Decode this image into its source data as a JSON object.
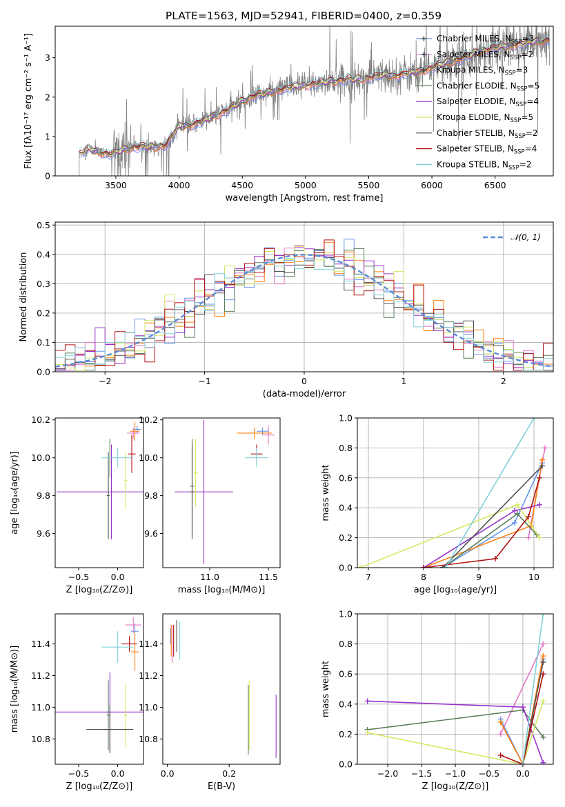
{
  "figure_title": "PLATE=1563, MJD=52941, FIBERID=0400, z=0.359",
  "colors": {
    "Chabrier MILES": "#6495ed",
    "Salpeter MILES": "#e377c2",
    "Kroupa MILES": "#ff7f0e",
    "Chabrier ELODIE": "#5a7d5a",
    "Salpeter ELODIE": "#9932cc",
    "Kroupa ELODIE": "#d4e860",
    "Chabrier STELIB": "#505050",
    "Salpeter STELIB": "#b01010",
    "Kroupa STELIB": "#80d0d8",
    "data": "#808080",
    "normal": "#5b8ad6"
  },
  "chart_data": [
    {
      "id": "spectrum",
      "type": "line",
      "xlabel": "wavelength [Angstrom, rest frame]",
      "ylabel": "Flux [fλ10⁻¹⁷ erg cm⁻² s⁻¹ A⁻¹]",
      "xlim": [
        3020,
        6960
      ],
      "ylim": [
        0,
        3.8
      ],
      "xticks": [
        3500,
        4000,
        4500,
        5000,
        5500,
        6000,
        6500
      ],
      "yticks": [
        0,
        1,
        2,
        3
      ],
      "data_range": [
        3210,
        6930
      ],
      "model_anchors": {
        "x": [
          3210,
          3280,
          3350,
          3450,
          3500,
          3600,
          3700,
          3800,
          3900,
          4000,
          4100,
          4200,
          4300,
          4400,
          4500,
          4600,
          4700,
          4800,
          4900,
          5000,
          5100,
          5200,
          5300,
          5400,
          5500,
          5600,
          5700,
          5800,
          5900,
          6000,
          6100,
          6200,
          6300,
          6400,
          6500,
          6600,
          6700,
          6800,
          6930
        ],
        "y": [
          0.55,
          0.68,
          0.62,
          0.55,
          0.6,
          0.7,
          0.75,
          0.72,
          0.8,
          1.25,
          1.3,
          1.4,
          1.55,
          1.7,
          1.9,
          2.05,
          2.1,
          2.2,
          2.25,
          2.3,
          2.35,
          2.4,
          2.45,
          2.45,
          2.5,
          2.55,
          2.55,
          2.6,
          2.65,
          2.75,
          2.85,
          2.95,
          3.05,
          3.2,
          3.25,
          3.3,
          3.35,
          3.4,
          3.45
        ]
      },
      "legend": [
        "Chabrier MILES, N_SSP=3",
        "Salpeter MILES, N_SSP=2",
        "Kroupa MILES, N_SSP=3",
        "Chabrier ELODIE, N_SSP=5",
        "Salpeter ELODIE, N_SSP=4",
        "Kroupa ELODIE, N_SSP=5",
        "Chabrier STELIB, N_SSP=2",
        "Salpeter STELIB, N_SSP=4",
        "Kroupa STELIB, N_SSP=2"
      ],
      "legend_position": "top-right"
    },
    {
      "id": "residuals",
      "type": "line",
      "xlabel": "(data-model)/error",
      "ylabel": "Normed distribution",
      "xlim": [
        -2.5,
        2.5
      ],
      "ylim": [
        0,
        0.51
      ],
      "xticks": [
        -2,
        -1,
        0,
        1,
        2
      ],
      "yticks": [
        0.0,
        0.1,
        0.2,
        0.3,
        0.4,
        0.5
      ],
      "bin_width": 0.1,
      "legend": [
        "𝒩(0, 1)"
      ],
      "legend_position": "top-right",
      "grid": true
    },
    {
      "id": "age_vs_Z",
      "type": "scatter",
      "xlabel": "Z [log₁₀(Z/Z⊙)]",
      "ylabel": "age  [log₁₀(age/yr)]",
      "xlim": [
        -0.8,
        0.33
      ],
      "ylim": [
        9.42,
        10.21
      ],
      "xticks": [
        -0.5,
        0.0
      ],
      "yticks": [
        9.6,
        9.8,
        10.0,
        10.2
      ],
      "points": [
        {
          "model": "Chabrier MILES",
          "x": 0.25,
          "xerr": 0.05,
          "y": 10.15,
          "yerr": 0.02
        },
        {
          "model": "Salpeter MILES",
          "x": 0.2,
          "xerr": 0.08,
          "y": 10.13,
          "yerr": 0.03
        },
        {
          "model": "Kroupa MILES",
          "x": 0.22,
          "xerr": 0.06,
          "y": 10.14,
          "yerr": 0.05
        },
        {
          "model": "Chabrier ELODIE",
          "x": -0.1,
          "xerr": 0.02,
          "y": 10.0,
          "yerr": 0.1
        },
        {
          "model": "Salpeter ELODIE",
          "x": -0.08,
          "xerr": 0.7,
          "y": 9.82,
          "yerr": 0.25
        },
        {
          "model": "Kroupa ELODIE",
          "x": 0.1,
          "xerr": 0.02,
          "y": 9.88,
          "yerr": 0.15
        },
        {
          "model": "Chabrier STELIB",
          "x": -0.12,
          "xerr": 0.02,
          "y": 9.8,
          "yerr": 0.23
        },
        {
          "model": "Salpeter STELIB",
          "x": 0.18,
          "xerr": 0.05,
          "y": 10.02,
          "yerr": 0.1
        },
        {
          "model": "Kroupa STELIB",
          "x": 0.0,
          "xerr": 0.2,
          "y": 10.0,
          "yerr": 0.05
        }
      ]
    },
    {
      "id": "age_vs_mass",
      "type": "scatter",
      "xlabel": "mass [log₁₀(M/M⊙)]",
      "ylabel": "",
      "xlim": [
        10.6,
        11.6
      ],
      "ylim": [
        9.42,
        10.21
      ],
      "xticks": [
        11.0,
        11.5
      ],
      "yticks": [
        9.6,
        9.8,
        10.0,
        10.2
      ],
      "points": [
        {
          "model": "Chabrier MILES",
          "x": 11.45,
          "xerr": 0.05,
          "y": 10.14,
          "yerr": 0.02
        },
        {
          "model": "Salpeter MILES",
          "x": 11.5,
          "xerr": 0.05,
          "y": 10.12,
          "yerr": 0.05
        },
        {
          "model": "Kroupa MILES",
          "x": 11.38,
          "xerr": 0.15,
          "y": 10.13,
          "yerr": 0.03
        },
        {
          "model": "Chabrier ELODIE",
          "x": 10.85,
          "xerr": 0.02,
          "y": 9.85,
          "yerr": 0.25
        },
        {
          "model": "Salpeter ELODIE",
          "x": 10.95,
          "xerr": 0.25,
          "y": 9.82,
          "yerr": 0.38
        },
        {
          "model": "Kroupa ELODIE",
          "x": 10.88,
          "xerr": 0.02,
          "y": 9.92,
          "yerr": 0.18
        },
        {
          "model": "Chabrier STELIB",
          "x": 10.85,
          "xerr": 0.02,
          "y": 9.82,
          "yerr": 0.25
        },
        {
          "model": "Salpeter STELIB",
          "x": 11.4,
          "xerr": 0.05,
          "y": 10.02,
          "yerr": 0.05
        },
        {
          "model": "Kroupa STELIB",
          "x": 11.4,
          "xerr": 0.1,
          "y": 10.0,
          "yerr": 0.05
        }
      ]
    },
    {
      "id": "weight_vs_age",
      "type": "line",
      "xlabel": "age  [log₁₀(age/yr)]",
      "ylabel": "mass weight",
      "xlim": [
        6.8,
        10.35
      ],
      "ylim": [
        0,
        1.0
      ],
      "xticks": [
        7,
        8,
        9,
        10
      ],
      "yticks": [
        0.0,
        0.2,
        0.4,
        0.6,
        0.8,
        1.0
      ],
      "grid": true,
      "series": [
        {
          "model": "Chabrier MILES",
          "x": [
            8.35,
            9.65,
            10.15
          ],
          "y": [
            0.0,
            0.3,
            0.7
          ]
        },
        {
          "model": "Salpeter MILES",
          "x": [
            9.9,
            10.2
          ],
          "y": [
            0.2,
            0.8
          ]
        },
        {
          "model": "Kroupa MILES",
          "x": [
            8.0,
            9.95,
            10.15
          ],
          "y": [
            0.0,
            0.28,
            0.72
          ]
        },
        {
          "model": "Chabrier ELODIE",
          "x": [
            8.35,
            9.7,
            10.05
          ],
          "y": [
            0.0,
            0.36,
            0.22
          ]
        },
        {
          "model": "Salpeter ELODIE",
          "x": [
            8.0,
            9.65,
            10.1
          ],
          "y": [
            0.0,
            0.38,
            0.42
          ]
        },
        {
          "model": "Kroupa ELODIE",
          "x": [
            6.85,
            9.7,
            10.1
          ],
          "y": [
            0.0,
            0.42,
            0.2
          ]
        },
        {
          "model": "Chabrier STELIB",
          "x": [
            8.35,
            10.15
          ],
          "y": [
            0.0,
            0.68
          ]
        },
        {
          "model": "Salpeter STELIB",
          "x": [
            8.0,
            9.3,
            9.9,
            10.1
          ],
          "y": [
            0.0,
            0.06,
            0.34,
            0.6
          ]
        },
        {
          "model": "Kroupa STELIB",
          "x": [
            8.4,
            10.0
          ],
          "y": [
            0.0,
            1.0
          ]
        }
      ]
    },
    {
      "id": "mass_vs_Z",
      "type": "scatter",
      "xlabel": "Z [log₁₀(Z/Z⊙)]",
      "ylabel": "mass [log₁₀(M/M⊙)]",
      "xlim": [
        -0.8,
        0.33
      ],
      "ylim": [
        10.64,
        11.59
      ],
      "xticks": [
        -0.5,
        0.0
      ],
      "yticks": [
        10.8,
        11.0,
        11.2,
        11.4
      ],
      "points": [
        {
          "model": "Chabrier MILES",
          "x": 0.22,
          "xerr": 0.05,
          "y": 11.48,
          "yerr": 0.05
        },
        {
          "model": "Salpeter MILES",
          "x": 0.2,
          "xerr": 0.1,
          "y": 11.52,
          "yerr": 0.05
        },
        {
          "model": "Kroupa MILES",
          "x": 0.22,
          "xerr": 0.05,
          "y": 11.35,
          "yerr": 0.12
        },
        {
          "model": "Chabrier ELODIE",
          "x": -0.12,
          "xerr": 0.02,
          "y": 10.95,
          "yerr": 0.22
        },
        {
          "model": "Salpeter ELODIE",
          "x": -0.1,
          "xerr": 0.7,
          "y": 10.97,
          "yerr": 0.25
        },
        {
          "model": "Kroupa ELODIE",
          "x": 0.1,
          "xerr": 0.02,
          "y": 10.95,
          "yerr": 0.2
        },
        {
          "model": "Chabrier STELIB",
          "x": -0.1,
          "xerr": 0.3,
          "y": 10.86,
          "yerr": 0.15
        },
        {
          "model": "Salpeter STELIB",
          "x": 0.15,
          "xerr": 0.1,
          "y": 11.4,
          "yerr": 0.05
        },
        {
          "model": "Kroupa STELIB",
          "x": 0.0,
          "xerr": 0.2,
          "y": 11.38,
          "yerr": 0.1
        }
      ]
    },
    {
      "id": "mass_vs_ebv",
      "type": "scatter",
      "xlabel": "E(B-V)",
      "ylabel": "",
      "xlim": [
        -0.015,
        0.365
      ],
      "ylim": [
        10.64,
        11.59
      ],
      "xticks": [
        0.0,
        0.2
      ],
      "yticks": [
        10.8,
        11.0,
        11.2,
        11.4
      ],
      "points": [
        {
          "model": "Chabrier MILES",
          "x": 0.01,
          "y": 11.45,
          "yerr": 0.05
        },
        {
          "model": "Salpeter MILES",
          "x": 0.015,
          "y": 11.4,
          "yerr": 0.12
        },
        {
          "model": "Kroupa MILES",
          "x": 0.012,
          "y": 11.42,
          "yerr": 0.1
        },
        {
          "model": "Chabrier ELODIE",
          "x": 0.262,
          "y": 10.92,
          "yerr": 0.22
        },
        {
          "model": "Salpeter ELODIE",
          "x": 0.352,
          "y": 10.88,
          "yerr": 0.2
        },
        {
          "model": "Kroupa ELODIE",
          "x": 0.265,
          "y": 10.95,
          "yerr": 0.22
        },
        {
          "model": "Chabrier STELIB",
          "x": 0.03,
          "y": 11.45,
          "yerr": 0.1
        },
        {
          "model": "Salpeter STELIB",
          "x": 0.02,
          "y": 11.42,
          "yerr": 0.1
        },
        {
          "model": "Kroupa STELIB",
          "x": 0.04,
          "y": 11.42,
          "yerr": 0.12
        }
      ]
    },
    {
      "id": "weight_vs_Z",
      "type": "line",
      "xlabel": "Z [log₁₀(Z/Z⊙)]",
      "ylabel": "mass weight",
      "xlim": [
        -2.45,
        0.45
      ],
      "ylim": [
        0,
        1.0
      ],
      "xticks": [
        -2.0,
        -1.5,
        -1.0,
        -0.5,
        0.0
      ],
      "grid": true,
      "series": [
        {
          "model": "Chabrier MILES",
          "x": [
            -0.33,
            0.0,
            0.3
          ],
          "y": [
            0.3,
            0.0,
            0.7
          ]
        },
        {
          "model": "Salpeter MILES",
          "x": [
            -0.33,
            0.3
          ],
          "y": [
            0.2,
            0.8
          ]
        },
        {
          "model": "Kroupa MILES",
          "x": [
            -0.33,
            0.0,
            0.3
          ],
          "y": [
            0.28,
            0.0,
            0.72
          ]
        },
        {
          "model": "Chabrier ELODIE",
          "x": [
            -2.3,
            0.0,
            0.3
          ],
          "y": [
            0.23,
            0.36,
            0.18
          ]
        },
        {
          "model": "Salpeter ELODIE",
          "x": [
            -2.3,
            0.0,
            0.3
          ],
          "y": [
            0.42,
            0.38,
            0.01
          ]
        },
        {
          "model": "Kroupa ELODIE",
          "x": [
            -2.3,
            0.0,
            0.3
          ],
          "y": [
            0.21,
            0.0,
            0.42
          ]
        },
        {
          "model": "Chabrier STELIB",
          "x": [
            0.0,
            0.3
          ],
          "y": [
            0.0,
            0.68
          ]
        },
        {
          "model": "Salpeter STELIB",
          "x": [
            -0.33,
            0.0,
            0.3
          ],
          "y": [
            0.06,
            0.0,
            0.6
          ]
        },
        {
          "model": "Kroupa STELIB",
          "x": [
            0.0,
            0.3
          ],
          "y": [
            0.0,
            1.0
          ]
        }
      ]
    }
  ]
}
